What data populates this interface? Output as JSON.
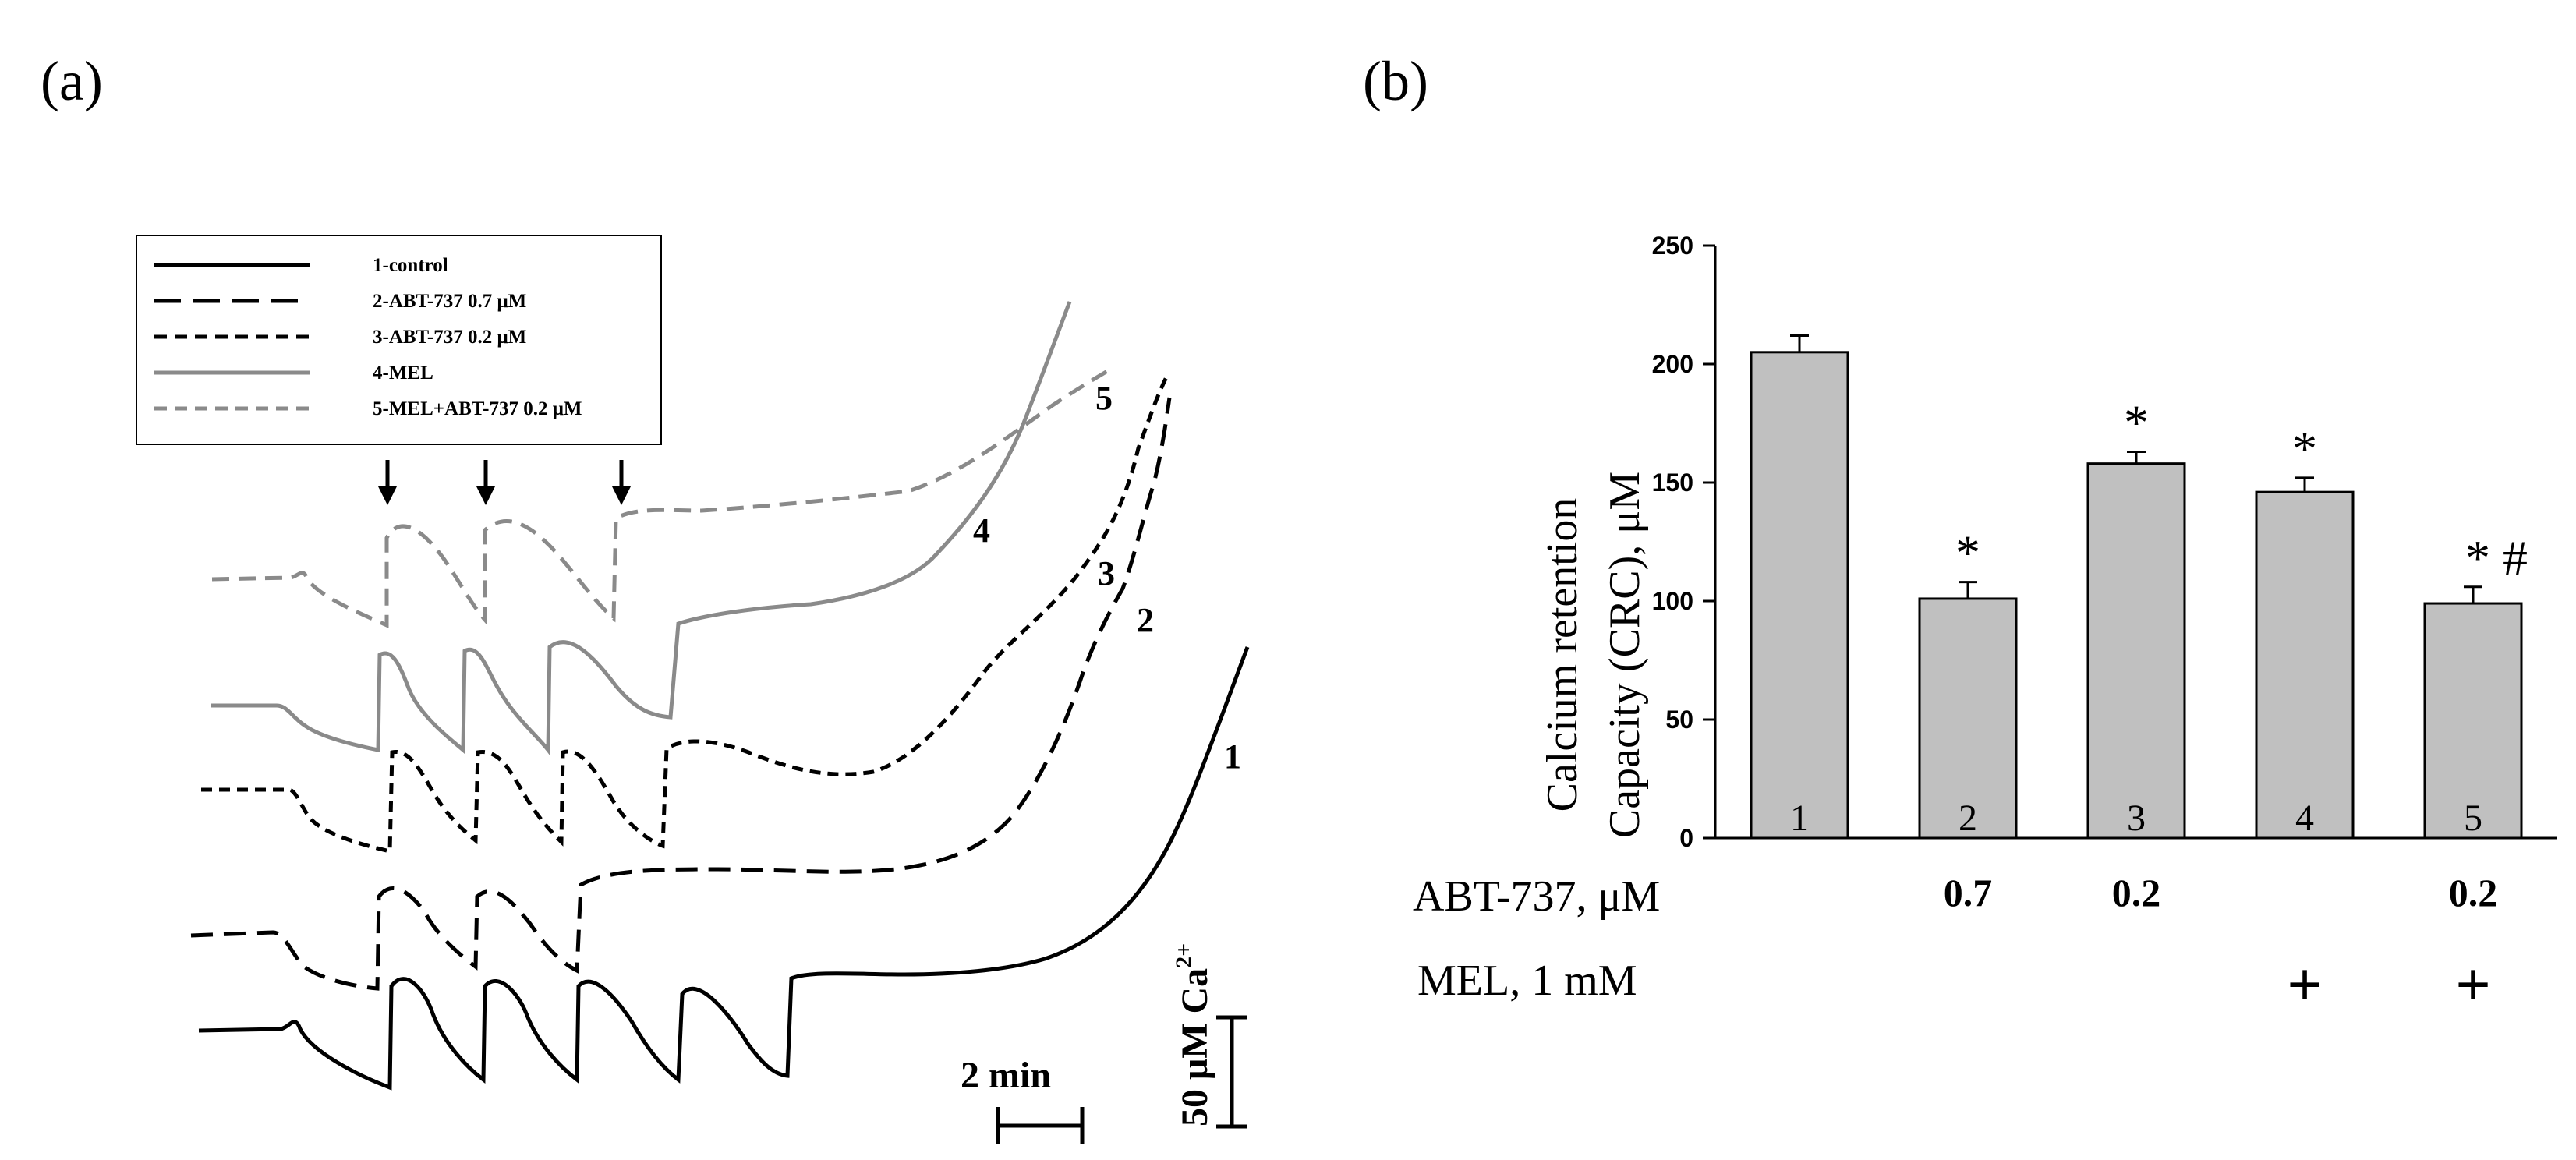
{
  "panels": {
    "a_label": "(a)",
    "b_label": "(b)"
  },
  "traces_panel": {
    "legend": [
      {
        "id": "1",
        "text": "1-control",
        "color": "#000000",
        "dash": "solid"
      },
      {
        "id": "2",
        "text": "2-ABT-737 0.7 μM",
        "color": "#000000",
        "dash": "long"
      },
      {
        "id": "3",
        "text": "3-ABT-737 0.2 μM",
        "color": "#000000",
        "dash": "short"
      },
      {
        "id": "4",
        "text": "4-MEL",
        "color": "#8a8a8a",
        "dash": "solid"
      },
      {
        "id": "5",
        "text": "5-MEL+ABT-737 0.2 μM",
        "color": "#8a8a8a",
        "dash": "short"
      }
    ],
    "trace_numbers": [
      "1",
      "2",
      "3",
      "4",
      "5"
    ],
    "time_scale_label": "2 min",
    "conc_scale_label": "50 μM Ca",
    "conc_scale_sup": "2+"
  },
  "chart_data": {
    "type": "bar",
    "ylabel_line1": "Calcium retention",
    "ylabel_line2": "Capacity (CRC), μM",
    "ylim": [
      0,
      250
    ],
    "yticks": [
      0,
      50,
      100,
      150,
      200,
      250
    ],
    "categories": [
      "1",
      "2",
      "3",
      "4",
      "5"
    ],
    "values": [
      205,
      101,
      158,
      146,
      99
    ],
    "errors": [
      7,
      7,
      5,
      6,
      7
    ],
    "annotations": [
      "",
      "*",
      "*",
      "*",
      "* #"
    ],
    "bar_color": "#c0c0c0",
    "conditions": [
      {
        "label": "ABT-737, μM",
        "values": [
          "",
          "0.7",
          "0.2",
          "",
          "0.2"
        ]
      },
      {
        "label": "MEL, 1 mM",
        "values": [
          "",
          "",
          "",
          "+",
          "+"
        ]
      }
    ]
  }
}
